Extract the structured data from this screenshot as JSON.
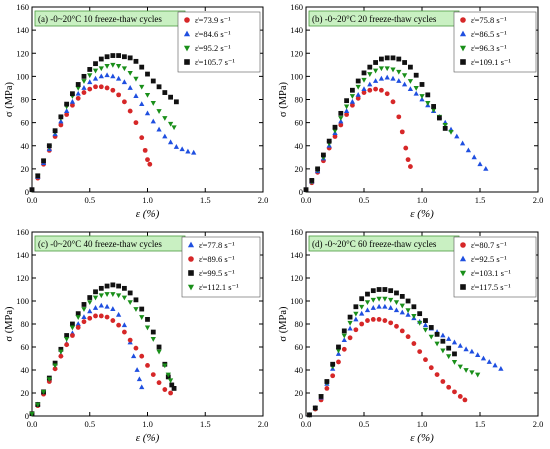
{
  "chart_data": [
    {
      "type": "scatter",
      "panel_label": "(a) -0~20°C 10 freeze-thaw cycles",
      "xlabel": "ε (%)",
      "ylabel": "σ (MPa)",
      "xlim": [
        0,
        2.0
      ],
      "ylim": [
        0,
        160
      ],
      "xticks": [
        "0.0",
        "0.5",
        "1.0",
        "1.5",
        "2.0"
      ],
      "yticks": [
        "0",
        "20",
        "40",
        "60",
        "80",
        "100",
        "120",
        "140",
        "160"
      ],
      "legend_position": "top-right",
      "series": [
        {
          "name": "ε̇=73.9 s⁻¹",
          "marker": "circle",
          "color": "#d62728",
          "x": [
            0.0,
            0.05,
            0.1,
            0.15,
            0.2,
            0.25,
            0.3,
            0.35,
            0.4,
            0.45,
            0.5,
            0.55,
            0.6,
            0.65,
            0.7,
            0.75,
            0.8,
            0.85,
            0.9,
            0.95,
            0.98,
            1.0,
            1.02
          ],
          "y": [
            2,
            12,
            24,
            36,
            48,
            58,
            67,
            75,
            81,
            86,
            89,
            91,
            91,
            90,
            88,
            84,
            78,
            70,
            60,
            47,
            36,
            28,
            24
          ]
        },
        {
          "name": "ε̇=84.6 s⁻¹",
          "marker": "triangle-up",
          "color": "#1f4fe0",
          "x": [
            0.0,
            0.05,
            0.1,
            0.15,
            0.2,
            0.25,
            0.3,
            0.35,
            0.4,
            0.45,
            0.5,
            0.55,
            0.6,
            0.65,
            0.7,
            0.75,
            0.8,
            0.85,
            0.9,
            0.95,
            1.0,
            1.05,
            1.1,
            1.15,
            1.2,
            1.25,
            1.3,
            1.35,
            1.4
          ],
          "y": [
            2,
            13,
            25,
            37,
            50,
            61,
            70,
            78,
            85,
            90,
            95,
            98,
            100,
            101,
            100,
            98,
            95,
            90,
            83,
            76,
            68,
            61,
            54,
            48,
            43,
            39,
            37,
            35,
            34
          ]
        },
        {
          "name": "ε̇=95.2 s⁻¹",
          "marker": "triangle-down",
          "color": "#1a8f1a",
          "x": [
            0.0,
            0.05,
            0.1,
            0.15,
            0.2,
            0.25,
            0.3,
            0.35,
            0.4,
            0.45,
            0.5,
            0.55,
            0.6,
            0.65,
            0.7,
            0.75,
            0.8,
            0.85,
            0.9,
            0.95,
            1.0,
            1.05,
            1.1,
            1.15,
            1.2,
            1.23
          ],
          "y": [
            2,
            14,
            27,
            39,
            52,
            64,
            74,
            83,
            90,
            96,
            101,
            105,
            107,
            109,
            110,
            109,
            107,
            103,
            98,
            91,
            84,
            77,
            70,
            64,
            59,
            56
          ]
        },
        {
          "name": "ε̇=105.7 s⁻¹",
          "marker": "square",
          "color": "#111111",
          "x": [
            0.0,
            0.05,
            0.1,
            0.15,
            0.2,
            0.25,
            0.3,
            0.35,
            0.4,
            0.45,
            0.5,
            0.55,
            0.6,
            0.65,
            0.7,
            0.75,
            0.8,
            0.85,
            0.9,
            0.95,
            1.0,
            1.05,
            1.1,
            1.15,
            1.2,
            1.25
          ],
          "y": [
            2,
            14,
            27,
            40,
            53,
            65,
            76,
            85,
            93,
            100,
            106,
            111,
            115,
            117,
            118,
            118,
            117,
            116,
            113,
            108,
            102,
            96,
            91,
            86,
            82,
            78
          ]
        }
      ]
    },
    {
      "type": "scatter",
      "panel_label": "(b) -0~20°C 20 freeze-thaw cycles",
      "xlabel": "ε (%)",
      "ylabel": "σ (MPa)",
      "xlim": [
        0,
        2.0
      ],
      "ylim": [
        0,
        160
      ],
      "xticks": [
        "0.0",
        "0.5",
        "1.0",
        "1.5",
        "2.0"
      ],
      "yticks": [
        "0",
        "20",
        "40",
        "60",
        "80",
        "100",
        "120",
        "140",
        "160"
      ],
      "legend_position": "top-right",
      "series": [
        {
          "name": "ε̇=75.8 s⁻¹",
          "marker": "circle",
          "color": "#d62728",
          "x": [
            0.0,
            0.05,
            0.1,
            0.15,
            0.2,
            0.25,
            0.3,
            0.35,
            0.4,
            0.45,
            0.5,
            0.55,
            0.6,
            0.65,
            0.7,
            0.75,
            0.8,
            0.83,
            0.86,
            0.88,
            0.9
          ],
          "y": [
            2,
            8,
            17,
            27,
            38,
            48,
            58,
            67,
            75,
            81,
            86,
            88,
            89,
            88,
            85,
            78,
            65,
            52,
            38,
            28,
            22
          ]
        },
        {
          "name": "ε̇=86.5 s⁻¹",
          "marker": "triangle-up",
          "color": "#1f4fe0",
          "x": [
            0.0,
            0.05,
            0.1,
            0.15,
            0.2,
            0.25,
            0.3,
            0.35,
            0.4,
            0.45,
            0.5,
            0.55,
            0.6,
            0.65,
            0.7,
            0.75,
            0.8,
            0.85,
            0.9,
            0.95,
            1.0,
            1.05,
            1.1,
            1.15,
            1.2,
            1.25,
            1.3,
            1.35,
            1.4,
            1.45,
            1.5,
            1.55
          ],
          "y": [
            2,
            9,
            18,
            29,
            40,
            51,
            61,
            70,
            78,
            84,
            89,
            93,
            96,
            98,
            99,
            98,
            96,
            93,
            89,
            85,
            80,
            75,
            70,
            65,
            60,
            54,
            48,
            42,
            36,
            30,
            24,
            20
          ]
        },
        {
          "name": "ε̇=96.3 s⁻¹",
          "marker": "triangle-down",
          "color": "#1a8f1a",
          "x": [
            0.0,
            0.05,
            0.1,
            0.15,
            0.2,
            0.25,
            0.3,
            0.35,
            0.4,
            0.45,
            0.5,
            0.55,
            0.6,
            0.65,
            0.7,
            0.75,
            0.8,
            0.85,
            0.9,
            0.95,
            1.0,
            1.05,
            1.1,
            1.15,
            1.2,
            1.25
          ],
          "y": [
            2,
            9,
            19,
            30,
            42,
            53,
            64,
            74,
            83,
            91,
            97,
            102,
            105,
            107,
            107,
            106,
            104,
            101,
            96,
            90,
            83,
            77,
            71,
            65,
            58,
            52
          ]
        },
        {
          "name": "ε̇=109.1 s⁻¹",
          "marker": "square",
          "color": "#111111",
          "x": [
            0.0,
            0.05,
            0.1,
            0.15,
            0.2,
            0.25,
            0.3,
            0.35,
            0.4,
            0.45,
            0.5,
            0.55,
            0.6,
            0.65,
            0.7,
            0.75,
            0.8,
            0.85,
            0.9,
            0.95,
            1.0,
            1.05,
            1.1,
            1.15,
            1.2
          ],
          "y": [
            2,
            10,
            20,
            32,
            44,
            56,
            68,
            79,
            88,
            96,
            103,
            108,
            112,
            115,
            116,
            116,
            115,
            112,
            108,
            101,
            93,
            84,
            74,
            64,
            55
          ]
        }
      ]
    },
    {
      "type": "scatter",
      "panel_label": "(c) -0~20°C 40 freeze-thaw cycles",
      "xlabel": "ε (%)",
      "ylabel": "σ (MPa)",
      "xlim": [
        0,
        2.0
      ],
      "ylim": [
        0,
        160
      ],
      "xticks": [
        "0.0",
        "0.5",
        "1.0",
        "1.5",
        "2.0"
      ],
      "yticks": [
        "0",
        "20",
        "40",
        "60",
        "80",
        "100",
        "120",
        "140",
        "160"
      ],
      "legend_position": "top-right",
      "series": [
        {
          "name": "ε̇=77.8 s⁻¹",
          "marker": "triangle-up",
          "color": "#1f4fe0",
          "x": [
            0.0,
            0.05,
            0.1,
            0.15,
            0.2,
            0.25,
            0.3,
            0.35,
            0.4,
            0.45,
            0.5,
            0.55,
            0.6,
            0.65,
            0.7,
            0.75,
            0.8,
            0.85,
            0.88,
            0.91,
            0.93,
            0.95
          ],
          "y": [
            2,
            10,
            20,
            31,
            42,
            53,
            63,
            72,
            80,
            86,
            91,
            94,
            96,
            95,
            93,
            88,
            79,
            64,
            52,
            40,
            32,
            25
          ]
        },
        {
          "name": "ε̇=89.6 s⁻¹",
          "marker": "circle",
          "color": "#d62728",
          "x": [
            0.0,
            0.05,
            0.1,
            0.15,
            0.2,
            0.25,
            0.3,
            0.35,
            0.4,
            0.45,
            0.5,
            0.55,
            0.6,
            0.65,
            0.7,
            0.75,
            0.8,
            0.85,
            0.9,
            0.95,
            1.0,
            1.05,
            1.1,
            1.15,
            1.2
          ],
          "y": [
            2,
            9,
            19,
            30,
            41,
            52,
            62,
            70,
            77,
            82,
            85,
            87,
            87,
            86,
            83,
            79,
            73,
            66,
            59,
            52,
            44,
            36,
            29,
            23,
            20
          ]
        },
        {
          "name": "ε̇=99.5 s⁻¹",
          "marker": "square",
          "color": "#111111",
          "x": [
            0.0,
            0.05,
            0.1,
            0.15,
            0.2,
            0.25,
            0.3,
            0.35,
            0.4,
            0.45,
            0.5,
            0.55,
            0.6,
            0.65,
            0.7,
            0.75,
            0.8,
            0.85,
            0.9,
            0.95,
            1.0,
            1.05,
            1.1,
            1.15,
            1.18,
            1.21,
            1.23
          ],
          "y": [
            2,
            10,
            21,
            33,
            46,
            58,
            70,
            80,
            89,
            97,
            103,
            108,
            111,
            113,
            114,
            113,
            111,
            107,
            101,
            93,
            84,
            73,
            60,
            45,
            34,
            27,
            24
          ]
        },
        {
          "name": "ε̇=112.1 s⁻¹",
          "marker": "triangle-down",
          "color": "#1a8f1a",
          "x": [
            0.0,
            0.05,
            0.1,
            0.15,
            0.2,
            0.25,
            0.3,
            0.35,
            0.4,
            0.45,
            0.5,
            0.55,
            0.6,
            0.65,
            0.7,
            0.75,
            0.8,
            0.85,
            0.9,
            0.95,
            1.0,
            1.05,
            1.1,
            1.15,
            1.18,
            1.2
          ],
          "y": [
            2,
            10,
            21,
            32,
            44,
            56,
            67,
            77,
            86,
            93,
            99,
            103,
            105,
            106,
            106,
            105,
            103,
            99,
            93,
            86,
            77,
            67,
            56,
            44,
            36,
            31
          ]
        }
      ]
    },
    {
      "type": "scatter",
      "panel_label": "(d) -0~20°C 60 freeze-thaw cycles",
      "xlabel": "ε (%)",
      "ylabel": "σ (MPa)",
      "xlim": [
        0,
        2.0
      ],
      "ylim": [
        0,
        160
      ],
      "xticks": [
        "0.0",
        "0.5",
        "1.0",
        "1.5",
        "2.0"
      ],
      "yticks": [
        "0",
        "20",
        "40",
        "60",
        "80",
        "100",
        "120",
        "140",
        "160"
      ],
      "legend_position": "top-right",
      "series": [
        {
          "name": "ε̇=80.7 s⁻¹",
          "marker": "circle",
          "color": "#d62728",
          "x": [
            0.03,
            0.08,
            0.13,
            0.18,
            0.23,
            0.28,
            0.33,
            0.38,
            0.43,
            0.48,
            0.53,
            0.58,
            0.63,
            0.68,
            0.73,
            0.78,
            0.83,
            0.88,
            0.93,
            0.98,
            1.03,
            1.08,
            1.13,
            1.18,
            1.23,
            1.28,
            1.33,
            1.37
          ],
          "y": [
            1,
            6,
            14,
            24,
            35,
            47,
            58,
            68,
            75,
            80,
            83,
            84,
            84,
            83,
            81,
            78,
            74,
            69,
            63,
            56,
            49,
            42,
            36,
            30,
            25,
            21,
            17,
            14
          ]
        },
        {
          "name": "ε̇=92.5 s⁻¹",
          "marker": "triangle-up",
          "color": "#1f4fe0",
          "x": [
            0.03,
            0.08,
            0.13,
            0.18,
            0.23,
            0.28,
            0.33,
            0.38,
            0.43,
            0.48,
            0.53,
            0.58,
            0.63,
            0.68,
            0.73,
            0.78,
            0.83,
            0.88,
            0.93,
            0.98,
            1.03,
            1.08,
            1.13,
            1.18,
            1.23,
            1.28,
            1.33,
            1.38,
            1.43,
            1.48,
            1.53,
            1.58,
            1.63,
            1.68
          ],
          "y": [
            1,
            7,
            16,
            28,
            41,
            54,
            66,
            76,
            84,
            89,
            92,
            94,
            95,
            95,
            94,
            92,
            90,
            88,
            85,
            82,
            79,
            76,
            73,
            70,
            67,
            64,
            61,
            58,
            56,
            53,
            50,
            47,
            44,
            41
          ]
        },
        {
          "name": "ε̇=103.1 s⁻¹",
          "marker": "triangle-down",
          "color": "#1a8f1a",
          "x": [
            0.03,
            0.08,
            0.13,
            0.18,
            0.23,
            0.28,
            0.33,
            0.38,
            0.43,
            0.48,
            0.53,
            0.58,
            0.63,
            0.68,
            0.73,
            0.78,
            0.83,
            0.88,
            0.93,
            0.98,
            1.03,
            1.08,
            1.13,
            1.18,
            1.23,
            1.28,
            1.33,
            1.38,
            1.43,
            1.48
          ],
          "y": [
            1,
            7,
            17,
            29,
            43,
            57,
            70,
            81,
            89,
            95,
            99,
            101,
            102,
            102,
            101,
            99,
            96,
            92,
            87,
            81,
            75,
            69,
            63,
            57,
            52,
            47,
            43,
            40,
            38,
            36
          ]
        },
        {
          "name": "ε̇=117.5 s⁻¹",
          "marker": "square",
          "color": "#111111",
          "x": [
            0.03,
            0.08,
            0.13,
            0.18,
            0.23,
            0.28,
            0.33,
            0.38,
            0.43,
            0.48,
            0.53,
            0.58,
            0.63,
            0.68,
            0.73,
            0.78,
            0.83,
            0.88,
            0.93,
            0.98,
            1.03,
            1.08,
            1.13,
            1.18,
            1.23,
            1.28
          ],
          "y": [
            1,
            7,
            17,
            30,
            45,
            60,
            74,
            86,
            95,
            102,
            106,
            109,
            110,
            110,
            109,
            107,
            104,
            100,
            95,
            89,
            83,
            77,
            71,
            65,
            59,
            54
          ]
        }
      ]
    }
  ]
}
